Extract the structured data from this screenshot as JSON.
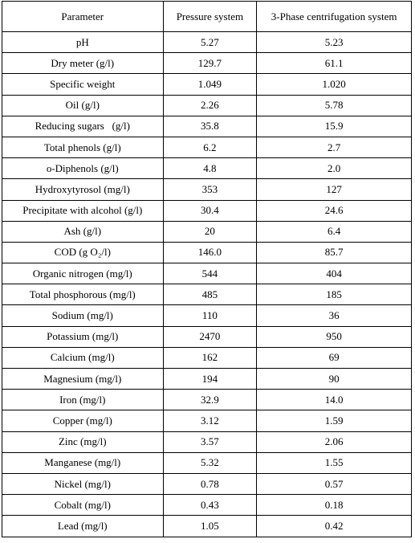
{
  "table": {
    "header": [
      "Parameter",
      "Pressure system",
      "3-Phase centrifugation system"
    ],
    "rows": [
      [
        "pH",
        "5.27",
        "5.23"
      ],
      [
        "Dry meter (g/l)",
        "129.7",
        "61.1"
      ],
      [
        "Specific weight",
        "1.049",
        "1.020"
      ],
      [
        "Oil (g/l)",
        "2.26",
        "5.78"
      ],
      [
        "Reducing sugars   (g/l)",
        "35.8",
        "15.9"
      ],
      [
        "Total phenols (g/l)",
        "6.2",
        "2.7"
      ],
      [
        "o-Diphenols (g/l)",
        "4.8",
        "2.0"
      ],
      [
        "Hydroxytyrosol (mg/l)",
        "353",
        "127"
      ],
      [
        "Precipitate with alcohol (g/l)",
        "30.4",
        "24.6"
      ],
      [
        "Ash (g/l)",
        "20",
        "6.4"
      ],
      [
        "COD (g O₂/l)",
        "146.0",
        "85.7"
      ],
      [
        "Organic nitrogen (mg/l)",
        "544",
        "404"
      ],
      [
        "Total phosphorous (mg/l)",
        "485",
        "185"
      ],
      [
        "Sodium (mg/l)",
        "110",
        "36"
      ],
      [
        "Potassium (mg/l)",
        "2470",
        "950"
      ],
      [
        "Calcium (mg/l)",
        "162",
        "69"
      ],
      [
        "Magnesium (mg/l)",
        "194",
        "90"
      ],
      [
        "Iron (mg/l)",
        "32.9",
        "14.0"
      ],
      [
        "Copper (mg/l)",
        "3.12",
        "1.59"
      ],
      [
        "Zinc (mg/l)",
        "3.57",
        "2.06"
      ],
      [
        "Manganese (mg/l)",
        "5.32",
        "1.55"
      ],
      [
        "Nickel (mg/l)",
        "0.78",
        "0.57"
      ],
      [
        "Cobalt (mg/l)",
        "0.43",
        "0.18"
      ],
      [
        "Lead (mg/l)",
        "1.05",
        "0.42"
      ]
    ]
  }
}
